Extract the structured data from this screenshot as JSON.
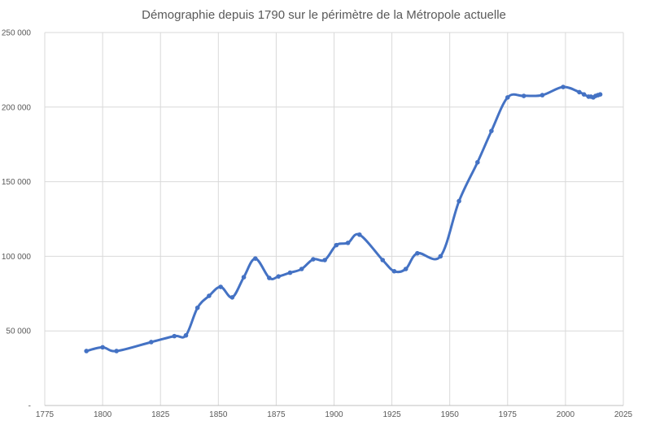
{
  "chart_data": {
    "type": "line",
    "title": "Démographie depuis 1790 sur le périmètre de la Métropole actuelle",
    "xlabel": "",
    "ylabel": "",
    "xlim": [
      1775,
      2025
    ],
    "ylim": [
      0,
      250000
    ],
    "x_ticks": [
      1775,
      1800,
      1825,
      1850,
      1875,
      1900,
      1925,
      1950,
      1975,
      2000,
      2025
    ],
    "x_tick_labels": [
      "1775",
      "1800",
      "1825",
      "1850",
      "1875",
      "1900",
      "1925",
      "1950",
      "1975",
      "2000",
      "2025"
    ],
    "y_ticks": [
      0,
      50000,
      100000,
      150000,
      200000,
      250000
    ],
    "y_tick_labels": [
      "-",
      "50 000",
      "100 000",
      "150 000",
      "200 000",
      "250 000"
    ],
    "grid": true,
    "legend": "none",
    "smooth": true,
    "color": "#4472c4",
    "series": [
      {
        "x": [
          1793,
          1800,
          1806,
          1821,
          1831,
          1836,
          1841,
          1846,
          1851,
          1856,
          1861,
          1866,
          1872,
          1876,
          1881,
          1886,
          1891,
          1896,
          1901,
          1906,
          1911,
          1921,
          1926,
          1931,
          1936,
          1946,
          1954,
          1962,
          1968,
          1975,
          1982,
          1990,
          1999,
          2006,
          2008,
          2010,
          2011,
          2012,
          2013,
          2014,
          2015
        ],
        "y": [
          36500,
          39000,
          36500,
          42500,
          46500,
          47000,
          65500,
          73500,
          79500,
          72500,
          86000,
          98500,
          85500,
          86500,
          89000,
          91500,
          98000,
          97500,
          107500,
          109000,
          114500,
          97500,
          90000,
          91500,
          102000,
          100000,
          137000,
          163000,
          184000,
          206500,
          207500,
          208000,
          213500,
          210000,
          208500,
          207000,
          207000,
          206500,
          207500,
          208000,
          208500
        ]
      }
    ]
  }
}
